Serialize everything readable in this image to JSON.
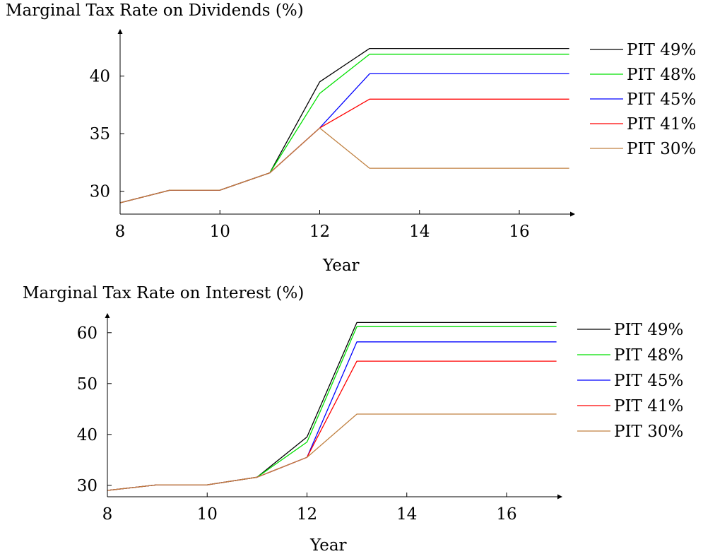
{
  "chart_data": [
    {
      "type": "line",
      "title": "Marginal Tax Rate on Dividends (%)",
      "xlabel": "Year",
      "ylabel": "",
      "xlim": [
        8,
        17
      ],
      "ylim": [
        28,
        44
      ],
      "xticks": [
        8,
        10,
        12,
        14,
        16
      ],
      "yticks": [
        30,
        35,
        40
      ],
      "grid": false,
      "legend_position": "right",
      "x": [
        8,
        9,
        10,
        11,
        12,
        13,
        17
      ],
      "series": [
        {
          "name": "PIT 49%",
          "color": "#000000",
          "values": [
            29.0,
            30.1,
            30.1,
            31.6,
            39.5,
            42.4,
            42.4
          ]
        },
        {
          "name": "PIT 48%",
          "color": "#00e000",
          "values": [
            29.0,
            30.1,
            30.1,
            31.6,
            38.5,
            41.9,
            41.9
          ]
        },
        {
          "name": "PIT 45%",
          "color": "#0000ff",
          "values": [
            29.0,
            30.1,
            30.1,
            31.6,
            35.5,
            40.2,
            40.2
          ]
        },
        {
          "name": "PIT 41%",
          "color": "#ff0000",
          "values": [
            29.0,
            30.1,
            30.1,
            31.6,
            35.5,
            38.0,
            38.0
          ]
        },
        {
          "name": "PIT 30%",
          "color": "#c08040",
          "values": [
            29.0,
            30.1,
            30.1,
            31.6,
            35.5,
            32.0,
            32.0
          ]
        }
      ]
    },
    {
      "type": "line",
      "title": "Marginal Tax Rate on Interest (%)",
      "xlabel": "Year",
      "ylabel": "",
      "xlim": [
        8,
        17
      ],
      "ylim": [
        28,
        64
      ],
      "xticks": [
        8,
        10,
        12,
        14,
        16
      ],
      "yticks": [
        30,
        40,
        50,
        60
      ],
      "grid": false,
      "legend_position": "right",
      "x": [
        8,
        9,
        10,
        11,
        12,
        13,
        17
      ],
      "series": [
        {
          "name": "PIT 49%",
          "color": "#000000",
          "values": [
            29.0,
            30.1,
            30.1,
            31.6,
            39.5,
            62.0,
            62.0
          ]
        },
        {
          "name": "PIT 48%",
          "color": "#00e000",
          "values": [
            29.0,
            30.1,
            30.1,
            31.6,
            38.5,
            61.2,
            61.2
          ]
        },
        {
          "name": "PIT 45%",
          "color": "#0000ff",
          "values": [
            29.0,
            30.1,
            30.1,
            31.6,
            35.5,
            58.2,
            58.2
          ]
        },
        {
          "name": "PIT 41%",
          "color": "#ff0000",
          "values": [
            29.0,
            30.1,
            30.1,
            31.6,
            35.5,
            54.4,
            54.4
          ]
        },
        {
          "name": "PIT 30%",
          "color": "#c08040",
          "values": [
            29.0,
            30.1,
            30.1,
            31.6,
            35.5,
            44.0,
            44.0
          ]
        }
      ]
    }
  ]
}
